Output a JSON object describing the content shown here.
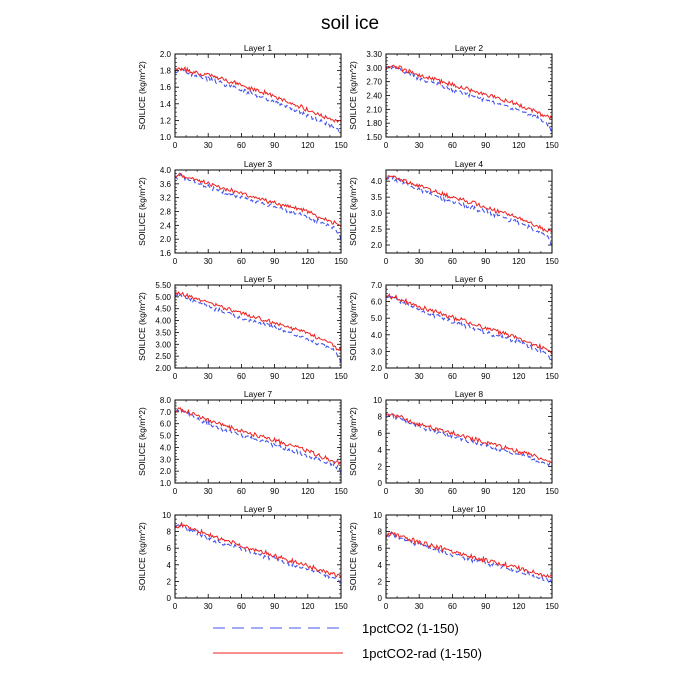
{
  "title": "soil ice",
  "legend": [
    {
      "label": "1pctCO2 (1-150)",
      "color": "#4455ee",
      "dash": true
    },
    {
      "label": "1pctCO2-rad (1-150)",
      "color": "#ee2222",
      "dash": false
    }
  ],
  "chart_data": [
    {
      "type": "line",
      "title": "Layer 1",
      "ylabel": "SOILICE  (kg/m^2)",
      "xlim": [
        0,
        150
      ],
      "ylim": [
        1.0,
        2.0
      ],
      "xticks": [
        0,
        30,
        60,
        90,
        120,
        150
      ],
      "yticks": [
        "1.0",
        "1.2",
        "1.4",
        "1.6",
        "1.8",
        "2.0"
      ],
      "series": [
        {
          "name": "1pctCO2 (1-150)",
          "color": "#4455ee",
          "x": [
            0,
            5,
            30,
            60,
            90,
            120,
            145,
            150
          ],
          "y": [
            1.78,
            1.8,
            1.7,
            1.57,
            1.43,
            1.26,
            1.12,
            1.05
          ]
        },
        {
          "name": "1pctCO2-rad (1-150)",
          "color": "#ee2222",
          "x": [
            0,
            5,
            30,
            60,
            90,
            120,
            145,
            150
          ],
          "y": [
            1.8,
            1.82,
            1.75,
            1.63,
            1.49,
            1.33,
            1.19,
            1.19
          ]
        }
      ]
    },
    {
      "type": "line",
      "title": "Layer 2",
      "ylabel": "SOILICE  (kg/m^2)",
      "xlim": [
        0,
        150
      ],
      "ylim": [
        1.5,
        3.3
      ],
      "xticks": [
        0,
        30,
        60,
        90,
        120,
        150
      ],
      "yticks": [
        "1.50",
        "1.80",
        "2.10",
        "2.40",
        "2.70",
        "3.00",
        "3.30"
      ],
      "series": [
        {
          "name": "1pctCO2 (1-150)",
          "color": "#4455ee",
          "x": [
            0,
            5,
            30,
            60,
            90,
            120,
            145,
            150
          ],
          "y": [
            2.97,
            3.02,
            2.78,
            2.52,
            2.32,
            2.08,
            1.82,
            1.6
          ]
        },
        {
          "name": "1pctCO2-rad (1-150)",
          "color": "#ee2222",
          "x": [
            0,
            5,
            30,
            60,
            90,
            120,
            145,
            150
          ],
          "y": [
            2.98,
            3.05,
            2.85,
            2.63,
            2.42,
            2.2,
            1.95,
            1.9
          ]
        }
      ]
    },
    {
      "type": "line",
      "title": "Layer 3",
      "ylabel": "SOILICE  (kg/m^2)",
      "xlim": [
        0,
        150
      ],
      "ylim": [
        1.6,
        4.0
      ],
      "xticks": [
        0,
        30,
        60,
        90,
        120,
        150
      ],
      "yticks": [
        "1.6",
        "2.0",
        "2.4",
        "2.8",
        "3.2",
        "3.6",
        "4.0"
      ],
      "series": [
        {
          "name": "1pctCO2 (1-150)",
          "color": "#4455ee",
          "x": [
            0,
            5,
            30,
            60,
            90,
            120,
            145,
            150
          ],
          "y": [
            3.78,
            3.82,
            3.5,
            3.2,
            2.95,
            2.65,
            2.3,
            2.0
          ]
        },
        {
          "name": "1pctCO2-rad (1-150)",
          "color": "#ee2222",
          "x": [
            0,
            5,
            30,
            60,
            90,
            120,
            145,
            150
          ],
          "y": [
            3.8,
            3.85,
            3.6,
            3.32,
            3.05,
            2.78,
            2.45,
            2.4
          ]
        }
      ]
    },
    {
      "type": "line",
      "title": "Layer 4",
      "ylabel": "SOILICE  (kg/m^2)",
      "xlim": [
        0,
        150
      ],
      "ylim": [
        1.75,
        4.35
      ],
      "xticks": [
        0,
        30,
        60,
        90,
        120,
        150
      ],
      "yticks": [
        "2.0",
        "2.5",
        "3.0",
        "3.5",
        "4.0"
      ],
      "series": [
        {
          "name": "1pctCO2 (1-150)",
          "color": "#4455ee",
          "x": [
            0,
            5,
            30,
            60,
            90,
            120,
            145,
            150
          ],
          "y": [
            4.08,
            4.12,
            3.72,
            3.35,
            3.05,
            2.7,
            2.3,
            2.0
          ]
        },
        {
          "name": "1pctCO2-rad (1-150)",
          "color": "#ee2222",
          "x": [
            0,
            5,
            30,
            60,
            90,
            120,
            145,
            150
          ],
          "y": [
            4.1,
            4.15,
            3.85,
            3.5,
            3.18,
            2.85,
            2.45,
            2.4
          ]
        }
      ]
    },
    {
      "type": "line",
      "title": "Layer 5",
      "ylabel": "SOILICE  (kg/m^2)",
      "xlim": [
        0,
        150
      ],
      "ylim": [
        2.0,
        5.5
      ],
      "xticks": [
        0,
        30,
        60,
        90,
        120,
        150
      ],
      "yticks": [
        "2.00",
        "2.50",
        "3.00",
        "3.50",
        "4.00",
        "4.50",
        "5.00",
        "5.50"
      ],
      "series": [
        {
          "name": "1pctCO2 (1-150)",
          "color": "#4455ee",
          "x": [
            0,
            5,
            30,
            60,
            90,
            120,
            145,
            150
          ],
          "y": [
            5.1,
            5.12,
            4.6,
            4.1,
            3.7,
            3.25,
            2.7,
            2.25
          ]
        },
        {
          "name": "1pctCO2-rad (1-150)",
          "color": "#ee2222",
          "x": [
            0,
            5,
            30,
            60,
            90,
            120,
            145,
            150
          ],
          "y": [
            5.12,
            5.15,
            4.75,
            4.3,
            3.9,
            3.45,
            2.9,
            2.7
          ]
        }
      ]
    },
    {
      "type": "line",
      "title": "Layer 6",
      "ylabel": "SOILICE  (kg/m^2)",
      "xlim": [
        0,
        150
      ],
      "ylim": [
        2.0,
        7.0
      ],
      "xticks": [
        0,
        30,
        60,
        90,
        120,
        150
      ],
      "yticks": [
        "2.0",
        "3.0",
        "4.0",
        "5.0",
        "6.0",
        "7.0"
      ],
      "series": [
        {
          "name": "1pctCO2 (1-150)",
          "color": "#4455ee",
          "x": [
            0,
            5,
            30,
            60,
            90,
            120,
            145,
            150
          ],
          "y": [
            6.25,
            6.3,
            5.5,
            4.8,
            4.15,
            3.55,
            2.9,
            2.4
          ]
        },
        {
          "name": "1pctCO2-rad (1-150)",
          "color": "#ee2222",
          "x": [
            0,
            5,
            30,
            60,
            90,
            120,
            145,
            150
          ],
          "y": [
            6.3,
            6.35,
            5.7,
            5.05,
            4.4,
            3.8,
            3.1,
            2.9
          ]
        }
      ]
    },
    {
      "type": "line",
      "title": "Layer 7",
      "ylabel": "SOILICE  (kg/m^2)",
      "xlim": [
        0,
        150
      ],
      "ylim": [
        1.0,
        8.0
      ],
      "xticks": [
        0,
        30,
        60,
        90,
        120,
        150
      ],
      "yticks": [
        "1.0",
        "2.0",
        "3.0",
        "4.0",
        "5.0",
        "6.0",
        "7.0",
        "8.0"
      ],
      "series": [
        {
          "name": "1pctCO2 (1-150)",
          "color": "#4455ee",
          "x": [
            0,
            5,
            30,
            60,
            90,
            120,
            145,
            150
          ],
          "y": [
            7.0,
            7.1,
            6.0,
            5.0,
            4.2,
            3.3,
            2.5,
            2.0
          ]
        },
        {
          "name": "1pctCO2-rad (1-150)",
          "color": "#ee2222",
          "x": [
            0,
            5,
            30,
            60,
            90,
            120,
            145,
            150
          ],
          "y": [
            7.05,
            7.2,
            6.3,
            5.4,
            4.6,
            3.7,
            2.8,
            2.6
          ]
        }
      ]
    },
    {
      "type": "line",
      "title": "Layer 8",
      "ylabel": "SOILICE  (kg/m^2)",
      "xlim": [
        0,
        150
      ],
      "ylim": [
        0,
        10
      ],
      "xticks": [
        0,
        30,
        60,
        90,
        120,
        150
      ],
      "yticks": [
        "0",
        "2",
        "4",
        "6",
        "8",
        "10"
      ],
      "series": [
        {
          "name": "1pctCO2 (1-150)",
          "color": "#4455ee",
          "x": [
            0,
            5,
            30,
            60,
            90,
            120,
            145,
            150
          ],
          "y": [
            8.0,
            8.2,
            6.8,
            5.6,
            4.5,
            3.4,
            2.3,
            2.0
          ]
        },
        {
          "name": "1pctCO2-rad (1-150)",
          "color": "#ee2222",
          "x": [
            0,
            5,
            30,
            60,
            90,
            120,
            145,
            150
          ],
          "y": [
            8.1,
            8.3,
            7.1,
            6.0,
            4.9,
            3.8,
            2.7,
            2.6
          ]
        }
      ]
    },
    {
      "type": "line",
      "title": "Layer 9",
      "ylabel": "SOILICE  (kg/m^2)",
      "xlim": [
        0,
        150
      ],
      "ylim": [
        0,
        10
      ],
      "xticks": [
        0,
        30,
        60,
        90,
        120,
        150
      ],
      "yticks": [
        "0",
        "2",
        "4",
        "6",
        "8",
        "10"
      ],
      "series": [
        {
          "name": "1pctCO2 (1-150)",
          "color": "#4455ee",
          "x": [
            0,
            5,
            30,
            60,
            90,
            120,
            145,
            150
          ],
          "y": [
            8.4,
            8.8,
            7.2,
            5.9,
            4.7,
            3.5,
            2.3,
            2.0
          ]
        },
        {
          "name": "1pctCO2-rad (1-150)",
          "color": "#ee2222",
          "x": [
            0,
            5,
            30,
            60,
            90,
            120,
            145,
            150
          ],
          "y": [
            8.5,
            8.9,
            7.6,
            6.3,
            5.1,
            3.9,
            2.8,
            2.6
          ]
        }
      ]
    },
    {
      "type": "line",
      "title": "Layer 10",
      "ylabel": "SOILICE  (kg/m^2)",
      "xlim": [
        0,
        150
      ],
      "ylim": [
        0,
        10
      ],
      "xticks": [
        0,
        30,
        60,
        90,
        120,
        150
      ],
      "yticks": [
        "0",
        "2",
        "4",
        "6",
        "8",
        "10"
      ],
      "series": [
        {
          "name": "1pctCO2 (1-150)",
          "color": "#4455ee",
          "x": [
            0,
            5,
            30,
            60,
            90,
            120,
            145,
            150
          ],
          "y": [
            7.4,
            7.7,
            6.4,
            5.2,
            4.2,
            3.2,
            2.2,
            2.0
          ]
        },
        {
          "name": "1pctCO2-rad (1-150)",
          "color": "#ee2222",
          "x": [
            0,
            5,
            30,
            60,
            90,
            120,
            145,
            150
          ],
          "y": [
            7.5,
            7.8,
            6.7,
            5.6,
            4.6,
            3.6,
            2.7,
            2.6
          ]
        }
      ]
    }
  ]
}
